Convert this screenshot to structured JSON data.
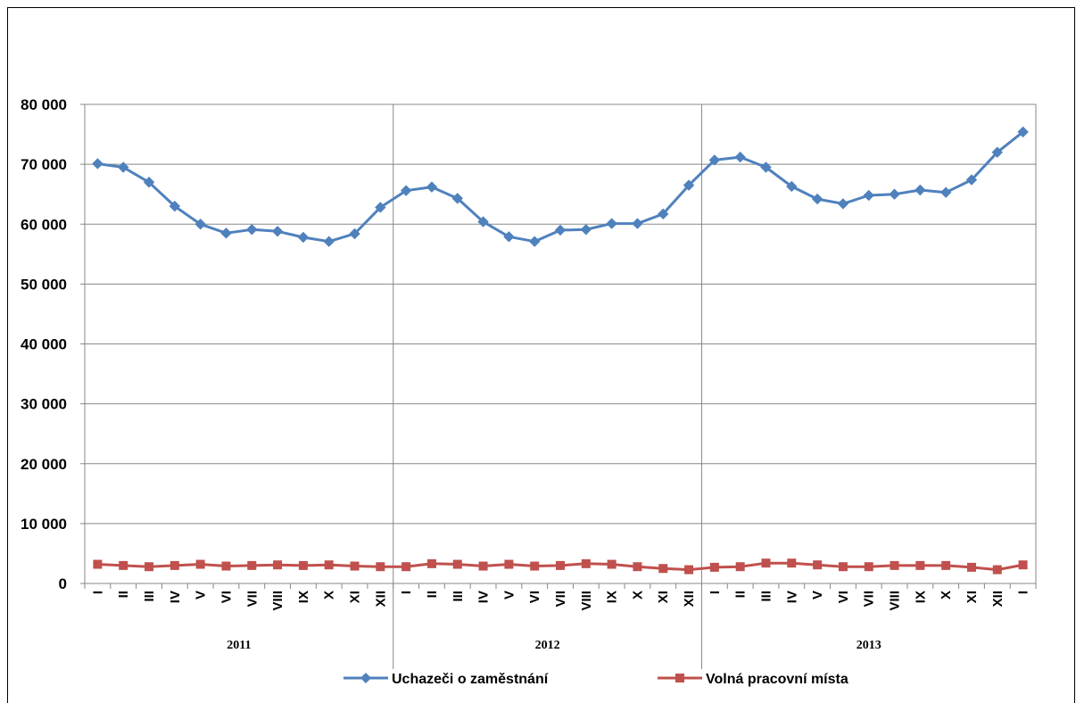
{
  "chart_data": {
    "type": "line",
    "title": "",
    "xlabel": "",
    "ylabel": "",
    "ylim": [
      0,
      80000
    ],
    "yticks": [
      0,
      10000,
      20000,
      30000,
      40000,
      50000,
      60000,
      70000,
      80000
    ],
    "ytick_labels": [
      "0",
      "10 000",
      "20 000",
      "30 000",
      "40 000",
      "50 000",
      "60 000",
      "70 000",
      "80 000"
    ],
    "grid": true,
    "legend_position": "bottom",
    "categories": [
      "I",
      "II",
      "III",
      "IV",
      "V",
      "VI",
      "VII",
      "VIII",
      "IX",
      "X",
      "XI",
      "XII",
      "I",
      "II",
      "III",
      "IV",
      "V",
      "VI",
      "VII",
      "VIII",
      "IX",
      "X",
      "XI",
      "XII",
      "I",
      "II",
      "III",
      "IV",
      "V",
      "VI",
      "VII",
      "VIII",
      "IX",
      "X",
      "XI",
      "XII",
      "I"
    ],
    "year_groups": [
      {
        "label": "2011",
        "start": 0,
        "end": 11
      },
      {
        "label": "2012",
        "start": 12,
        "end": 23
      },
      {
        "label": "2013",
        "start": 24,
        "end": 36
      }
    ],
    "series": [
      {
        "name": "Uchazeči o zaměstnání",
        "color": "#4F81BD",
        "marker": "diamond",
        "values": [
          70100,
          69500,
          67000,
          63000,
          60000,
          58500,
          59100,
          58800,
          57800,
          57100,
          58400,
          62800,
          65600,
          66200,
          64300,
          60400,
          57900,
          57100,
          59000,
          59100,
          60100,
          60100,
          61700,
          66500,
          70700,
          71200,
          69500,
          66300,
          64200,
          63400,
          64800,
          65000,
          65700,
          65300,
          67400,
          72000,
          75400
        ]
      },
      {
        "name": "Volná pracovní místa",
        "color": "#C0504D",
        "marker": "square",
        "values": [
          3200,
          3000,
          2800,
          3000,
          3200,
          2900,
          3000,
          3100,
          3000,
          3100,
          2900,
          2800,
          2800,
          3300,
          3200,
          2900,
          3200,
          2900,
          3000,
          3300,
          3200,
          2800,
          2500,
          2300,
          2700,
          2800,
          3400,
          3400,
          3100,
          2800,
          2800,
          3000,
          3000,
          3000,
          2700,
          2300,
          3100
        ]
      }
    ]
  }
}
